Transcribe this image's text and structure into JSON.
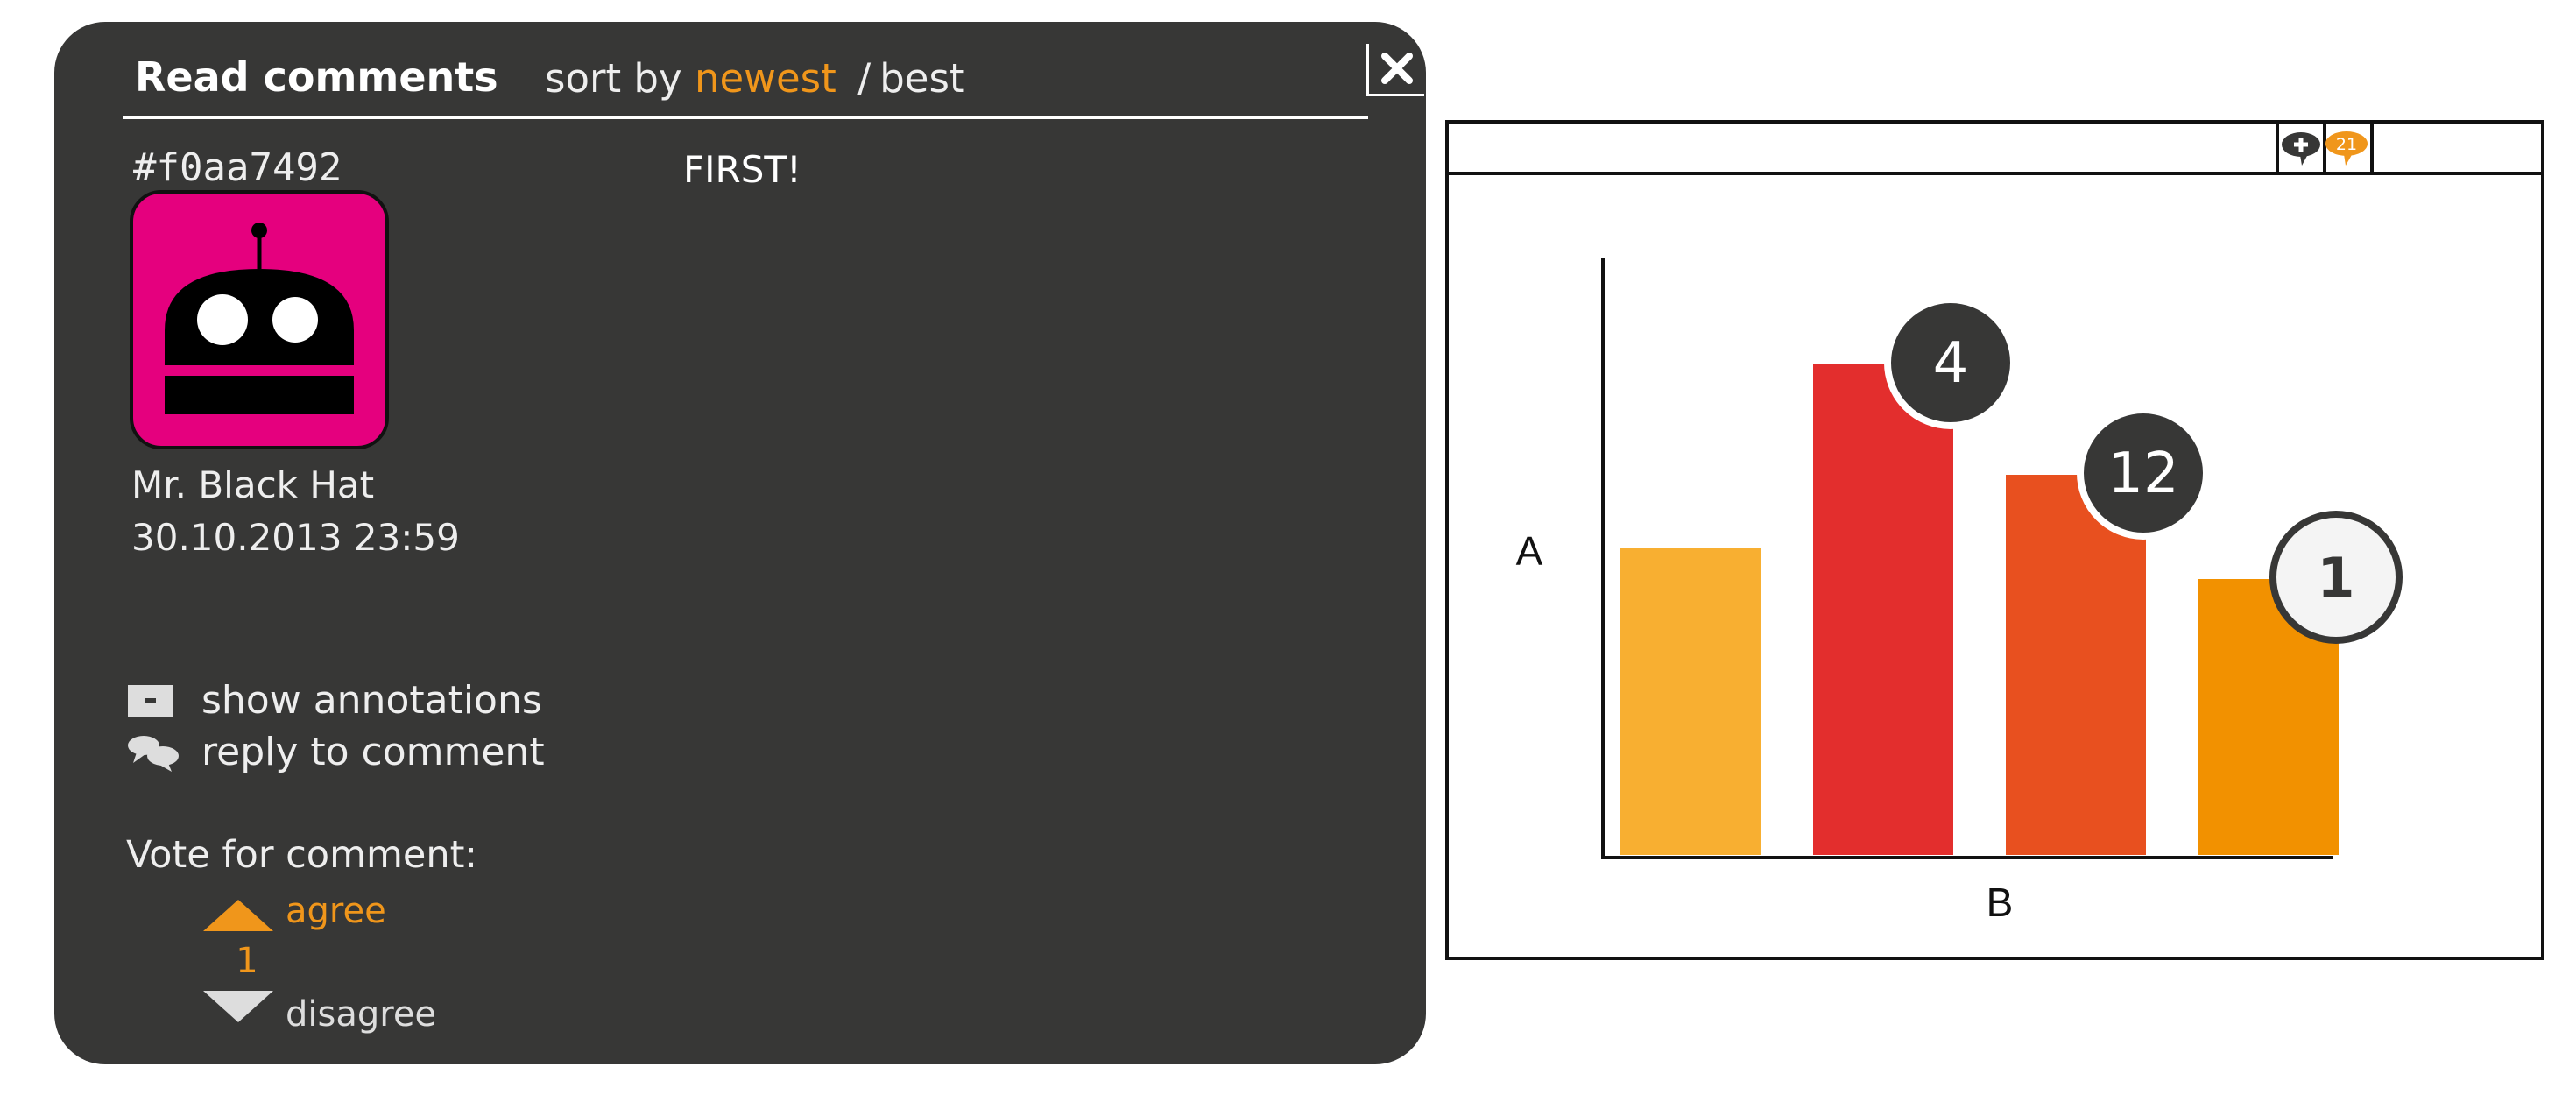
{
  "panel": {
    "title": "Read comments",
    "sort": {
      "prefix": "sort by",
      "options": [
        "newest",
        "best"
      ],
      "active": "newest",
      "separator": "/"
    },
    "close_icon": "close-icon"
  },
  "comment": {
    "id": "#f0aa7492",
    "text": "FIRST!",
    "author": "Mr. Black Hat",
    "date": "30.10.2013 23:59",
    "avatar": {
      "icon": "robot-avatar-icon",
      "background": "#e5007e"
    }
  },
  "actions": [
    {
      "icon": "annotation-icon",
      "label": "show annotations"
    },
    {
      "icon": "reply-bubbles-icon",
      "label": "reply to comment"
    }
  ],
  "vote": {
    "heading": "Vote for comment:",
    "agree_label": "agree",
    "count": "1",
    "disagree_label": "disagree"
  },
  "toolbar": {
    "add_comment_icon": "add-comment-icon",
    "comments_count": "21"
  },
  "colors": {
    "panel_bg": "#373736",
    "accent": "#f0961b",
    "avatar_bg": "#e5007e",
    "badge_dark": "#373736"
  },
  "chart_data": {
    "type": "bar",
    "xlabel": "B",
    "ylabel": "A",
    "categories": [
      "",
      "",
      "",
      ""
    ],
    "values": [
      5.0,
      8.0,
      6.2,
      4.5
    ],
    "ylim": [
      0,
      10
    ],
    "bar_colors": [
      "#f8af31",
      "#e32e2d",
      "#e8501f",
      "#f29100"
    ],
    "comment_badges": [
      {
        "bar": 1,
        "count": "4",
        "style": "dark"
      },
      {
        "bar": 2,
        "count": "12",
        "style": "dark"
      },
      {
        "bar": 3,
        "count": "1",
        "style": "light"
      }
    ]
  }
}
